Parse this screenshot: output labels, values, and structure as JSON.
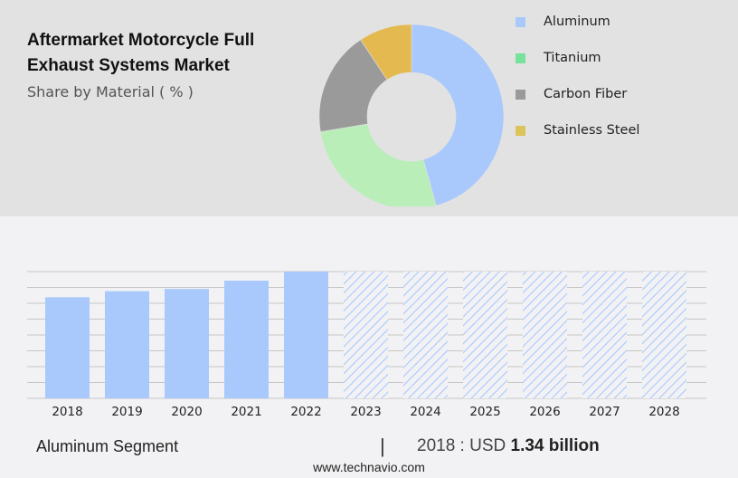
{
  "header": {
    "title_line1": "Aftermarket Motorcycle Full",
    "title_line2": "Exhaust Systems Market",
    "subtitle": "Share by Material ( % )"
  },
  "legend": {
    "items": [
      {
        "label": "Aluminum",
        "color": "#a9c9fc"
      },
      {
        "label": "Titanium",
        "color": "#77e29b"
      },
      {
        "label": "Carbon Fiber",
        "color": "#9a9a9a"
      },
      {
        "label": "Stainless Steel",
        "color": "#dcc35a"
      }
    ]
  },
  "summary": {
    "segment_label": "Aluminum Segment",
    "divider": "|",
    "value_prefix": "2018 : USD ",
    "value_bold": "1.34 billion"
  },
  "footer": {
    "website": "www.technavio.com"
  },
  "chart_data": [
    {
      "type": "pie",
      "variant": "donut",
      "title": "Aftermarket Motorcycle Full Exhaust Systems Market",
      "subtitle": "Share by Material ( % )",
      "categories": [
        "Aluminum",
        "Titanium",
        "Carbon Fiber",
        "Stainless Steel"
      ],
      "values": [
        45.7,
        26.7,
        18.3,
        9.3
      ],
      "colors": [
        "#a9c9fc",
        "#b9eeb9",
        "#9a9a9a",
        "#e4b94f"
      ],
      "legend_position": "right"
    },
    {
      "type": "bar",
      "title": "Aluminum Segment",
      "categories": [
        "2018",
        "2019",
        "2020",
        "2021",
        "2022",
        "2023",
        "2024",
        "2025",
        "2026",
        "2027",
        "2028"
      ],
      "values": [
        1.34,
        1.42,
        1.45,
        1.56,
        1.68,
        null,
        null,
        null,
        null,
        null,
        null
      ],
      "forecast_years": [
        "2023",
        "2024",
        "2025",
        "2026",
        "2027",
        "2028"
      ],
      "forecast_style": "hatched, full height (values not disclosed)",
      "units": "USD billion",
      "xlabel": "",
      "ylabel": "",
      "ylim": [
        0,
        1.68
      ],
      "grid": true,
      "annotation": "2018 : USD 1.34 billion",
      "color": "#a9c9fc"
    }
  ]
}
